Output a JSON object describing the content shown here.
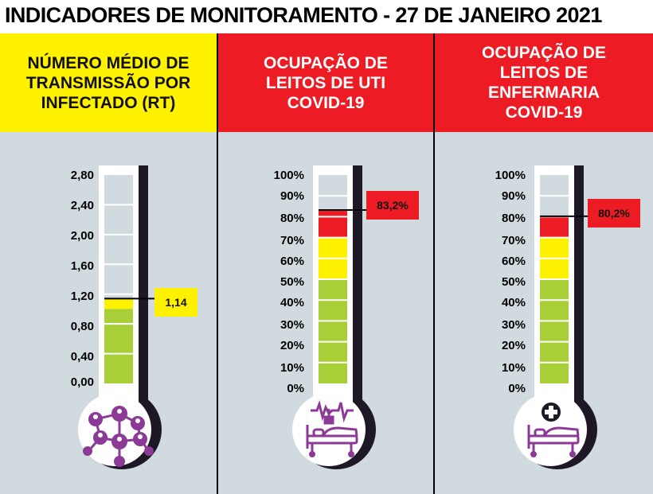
{
  "title": "INDICADORES DE MONITORAMENTO - 27 DE JANEIRO 2021",
  "panels": [
    {
      "header": [
        "NÚMERO MÉDIO DE",
        "TRANSMISSÃO POR",
        "INFECTADO (RT)"
      ],
      "header_color": "#fff200",
      "ticks": [
        "2,80",
        "2,40",
        "2,00",
        "1,60",
        "1,20",
        "0,80",
        "0,40",
        "0,00"
      ],
      "value_label": "1,14",
      "value": 1.14,
      "icon": "people-network-icon"
    },
    {
      "header": [
        "OCUPAÇÃO DE",
        "LEITOS DE UTI",
        "COVID-19"
      ],
      "header_color": "#ed1c24",
      "ticks": [
        "100%",
        "90%",
        "80%",
        "70%",
        "60%",
        "50%",
        "40%",
        "30%",
        "20%",
        "10%",
        "0%"
      ],
      "value_label": "83,2%",
      "value": 83.2,
      "icon": "icu-bed-heart-monitor-icon"
    },
    {
      "header": [
        "OCUPAÇÃO DE",
        "LEITOS DE",
        "ENFERMARIA",
        "COVID-19"
      ],
      "header_color": "#ed1c24",
      "ticks": [
        "100%",
        "90%",
        "80%",
        "70%",
        "60%",
        "50%",
        "40%",
        "30%",
        "20%",
        "10%",
        "0%"
      ],
      "value_label": "80,2%",
      "value": 80.2,
      "icon": "ward-bed-medical-cross-icon"
    }
  ],
  "colors": {
    "yellow": "#fff200",
    "red": "#ed1c24",
    "green": "#a8cf38",
    "purple": "#8b3a96",
    "background": "#d1dadf"
  }
}
